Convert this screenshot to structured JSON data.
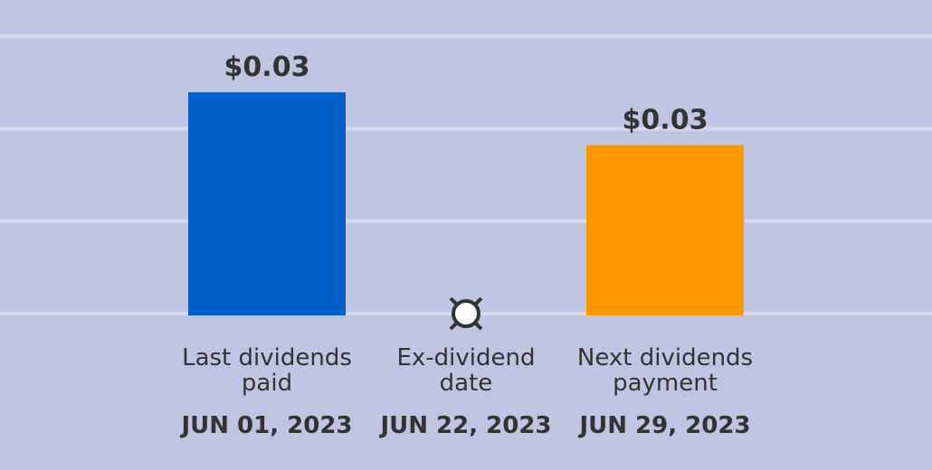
{
  "chart_data": {
    "type": "bar",
    "categories": [
      {
        "label": "Last dividends paid",
        "date": "JUN 01, 2023"
      },
      {
        "label": "Ex-dividend date",
        "date": "JUN 22, 2023"
      },
      {
        "label": "Next dividends payment",
        "date": "JUN 29, 2023"
      }
    ],
    "values": [
      0.0335,
      null,
      0.0255
    ],
    "value_labels": [
      "$0.03",
      null,
      "$0.03"
    ],
    "colors": [
      "#005ec8",
      null,
      "#ff9800"
    ],
    "ylim": [
      0,
      0.042
    ],
    "yticks": [
      0,
      0.014,
      0.028,
      0.042
    ],
    "grid": true
  }
}
